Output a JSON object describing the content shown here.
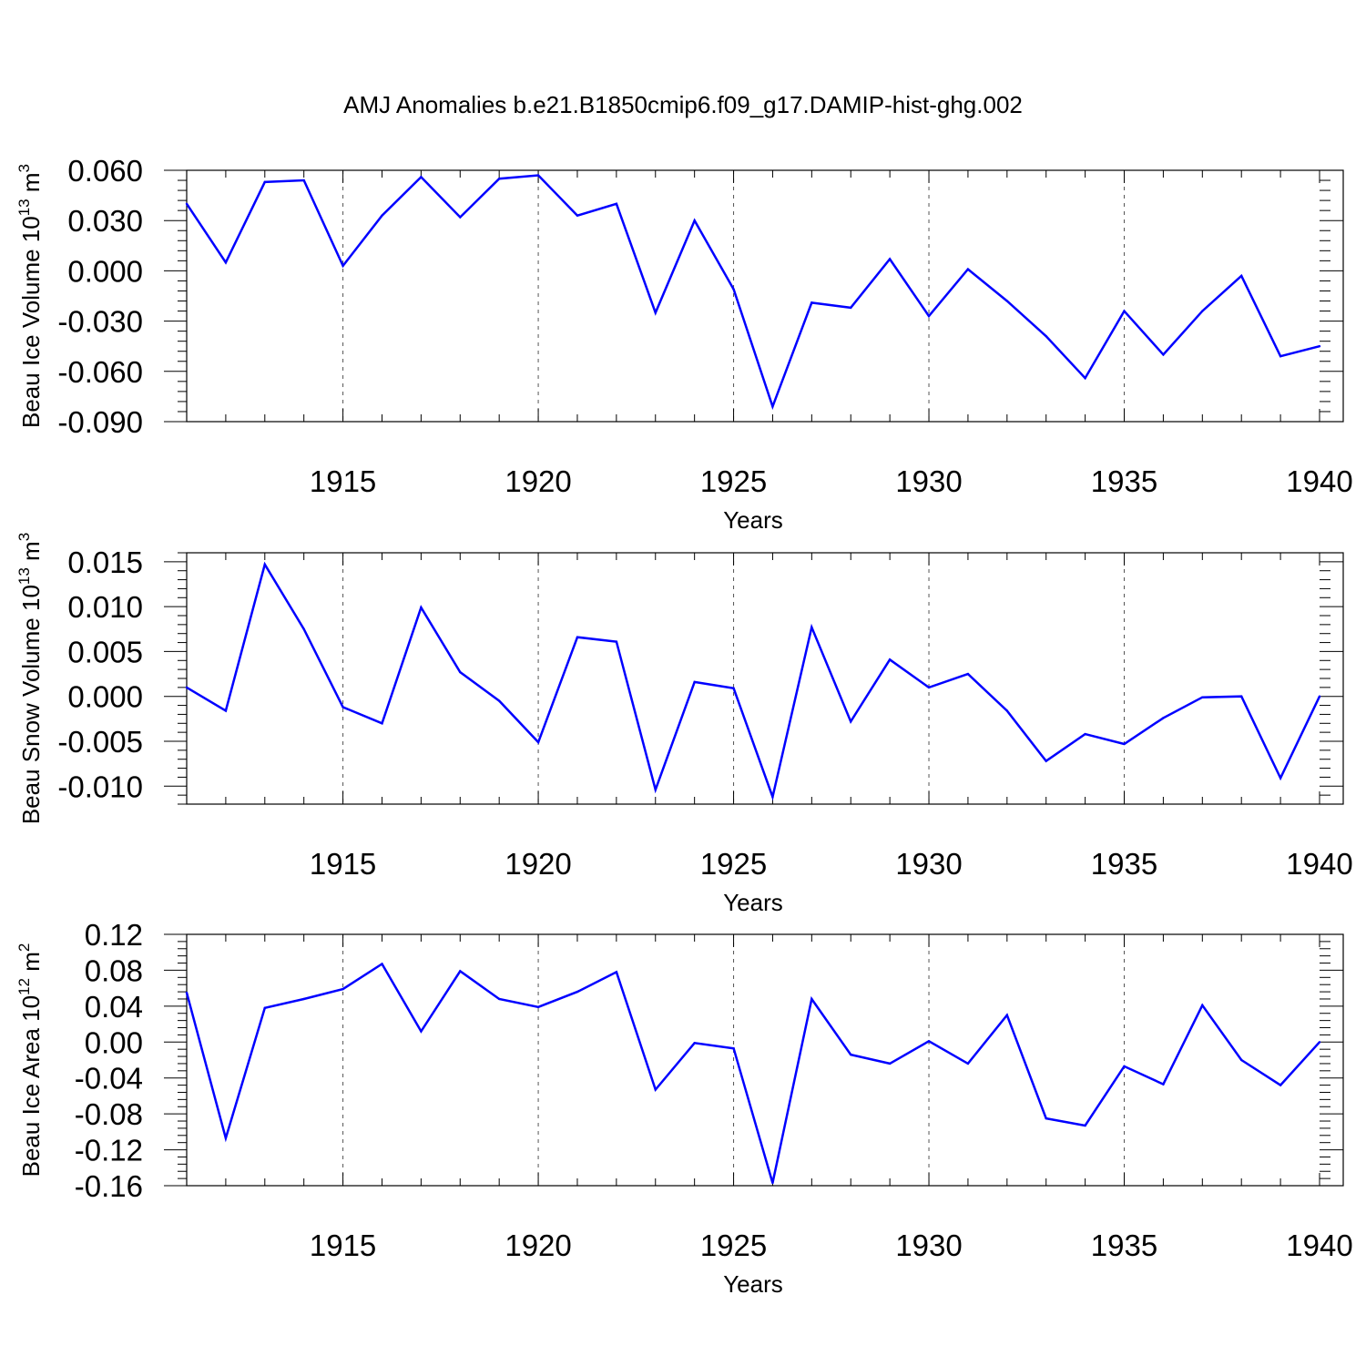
{
  "title": "AMJ Anomalies b.e21.B1850cmip6.f09_g17.DAMIP-hist-ghg.002",
  "colors": {
    "line": "#0000ff",
    "axis": "#000000",
    "grid": "#555555",
    "background": "#ffffff"
  },
  "chart_data": [
    {
      "type": "line",
      "name": "ice-volume",
      "xlabel": "Years",
      "ylabel_main": "Beau Ice Volume 10",
      "ylabel_sup": "13",
      "ylabel_unit": " m",
      "ylabel_unit_sup": "3",
      "xlim": [
        1911,
        1940
      ],
      "ylim": [
        -0.09,
        0.06
      ],
      "yticks": [
        0.06,
        0.03,
        0.0,
        -0.03,
        -0.06,
        -0.09
      ],
      "yticklabels": [
        "0.060",
        "0.030",
        "0.000",
        "-0.030",
        "-0.060",
        "-0.090"
      ],
      "xticks": [
        1915,
        1920,
        1925,
        1930,
        1935,
        1940
      ],
      "xticklabels": [
        "1915",
        "1920",
        "1925",
        "1930",
        "1935",
        "1940"
      ],
      "grid": "vertical dashed at major x ticks",
      "x": [
        1911,
        1912,
        1913,
        1914,
        1915,
        1916,
        1917,
        1918,
        1919,
        1920,
        1921,
        1922,
        1923,
        1924,
        1925,
        1926,
        1927,
        1928,
        1929,
        1930,
        1931,
        1932,
        1933,
        1934,
        1935,
        1936,
        1937,
        1938,
        1939,
        1940
      ],
      "values": [
        0.04,
        0.005,
        0.053,
        0.054,
        0.003,
        0.033,
        0.056,
        0.032,
        0.055,
        0.057,
        0.033,
        0.04,
        -0.025,
        0.03,
        -0.011,
        -0.081,
        -0.019,
        -0.022,
        0.007,
        -0.027,
        0.001,
        -0.018,
        -0.039,
        -0.064,
        -0.024,
        -0.05,
        -0.024,
        -0.003,
        -0.051,
        -0.045
      ]
    },
    {
      "type": "line",
      "name": "snow-volume",
      "xlabel": "Years",
      "ylabel_main": "Beau Snow Volume 10",
      "ylabel_sup": "13",
      "ylabel_unit": " m",
      "ylabel_unit_sup": "3",
      "xlim": [
        1911,
        1940
      ],
      "ylim": [
        -0.012,
        0.016
      ],
      "yticks": [
        0.015,
        0.01,
        0.005,
        0.0,
        -0.005,
        -0.01
      ],
      "yticklabels": [
        "0.015",
        "0.010",
        "0.005",
        "0.000",
        "-0.005",
        "-0.010"
      ],
      "xticks": [
        1915,
        1920,
        1925,
        1930,
        1935,
        1940
      ],
      "xticklabels": [
        "1915",
        "1920",
        "1925",
        "1930",
        "1935",
        "1940"
      ],
      "grid": "vertical dashed at major x ticks",
      "x": [
        1911,
        1912,
        1913,
        1914,
        1915,
        1916,
        1917,
        1918,
        1919,
        1920,
        1921,
        1922,
        1923,
        1924,
        1925,
        1926,
        1927,
        1928,
        1929,
        1930,
        1931,
        1932,
        1933,
        1934,
        1935,
        1936,
        1937,
        1938,
        1939,
        1940
      ],
      "values": [
        0.001,
        -0.0016,
        0.0147,
        0.0075,
        -0.0012,
        -0.003,
        0.0099,
        0.0027,
        -0.0005,
        -0.0051,
        0.0066,
        0.0061,
        -0.0104,
        0.0016,
        0.0009,
        -0.0112,
        0.0077,
        -0.0028,
        0.0041,
        0.001,
        0.0025,
        -0.0016,
        -0.0072,
        -0.0042,
        -0.0053,
        -0.0024,
        -0.0001,
        0.0,
        -0.0091,
        0.0
      ]
    },
    {
      "type": "line",
      "name": "ice-area",
      "xlabel": "Years",
      "ylabel_main": "Beau Ice Area 10",
      "ylabel_sup": "12",
      "ylabel_unit": " m",
      "ylabel_unit_sup": "2",
      "xlim": [
        1911,
        1940
      ],
      "ylim": [
        -0.16,
        0.12
      ],
      "yticks": [
        0.12,
        0.08,
        0.04,
        0.0,
        -0.04,
        -0.08,
        -0.12,
        -0.16
      ],
      "yticklabels": [
        "0.12",
        "0.08",
        "0.04",
        "0.00",
        "-0.04",
        "-0.08",
        "-0.12",
        "-0.16"
      ],
      "xticks": [
        1915,
        1920,
        1925,
        1930,
        1935,
        1940
      ],
      "xticklabels": [
        "1915",
        "1920",
        "1925",
        "1930",
        "1935",
        "1940"
      ],
      "grid": "vertical dashed at major x ticks",
      "x": [
        1911,
        1912,
        1913,
        1914,
        1915,
        1916,
        1917,
        1918,
        1919,
        1920,
        1921,
        1922,
        1923,
        1924,
        1925,
        1926,
        1927,
        1928,
        1929,
        1930,
        1931,
        1932,
        1933,
        1934,
        1935,
        1936,
        1937,
        1938,
        1939,
        1940
      ],
      "values": [
        0.055,
        -0.107,
        0.038,
        0.048,
        0.059,
        0.087,
        0.012,
        0.079,
        0.048,
        0.039,
        0.056,
        0.078,
        -0.053,
        -0.001,
        -0.007,
        -0.157,
        0.048,
        -0.014,
        -0.024,
        0.001,
        -0.024,
        0.03,
        -0.085,
        -0.093,
        -0.027,
        -0.047,
        0.041,
        -0.02,
        -0.048,
        0.0
      ]
    }
  ]
}
